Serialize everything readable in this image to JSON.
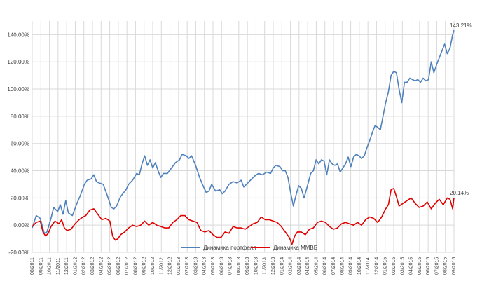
{
  "chart_data": {
    "type": "line",
    "title": "",
    "xlabel": "",
    "ylabel": "",
    "ylim": [
      -0.2,
      1.5
    ],
    "grid": true,
    "legend_position": "bottom-center",
    "y_ticks": [
      "-20.00%",
      "0.00%",
      "20.00%",
      "40.00%",
      "60.00%",
      "80.00%",
      "100.00%",
      "120.00%",
      "140.00%"
    ],
    "y_tick_values": [
      -0.2,
      0.0,
      0.2,
      0.4,
      0.6,
      0.8,
      1.0,
      1.2,
      1.4
    ],
    "x_labels": [
      "08/2011",
      "09/2011",
      "10/2011",
      "11/2011",
      "12/2011",
      "01/2012",
      "02/2012",
      "03/2012",
      "04/2012",
      "05/2012",
      "06/2012",
      "07/2012",
      "08/2012",
      "09/2012",
      "10/2012",
      "11/2012",
      "12/2012",
      "01/2013",
      "02/2013",
      "03/2013",
      "04/2013",
      "05/2013",
      "06/2013",
      "07/2013",
      "08/2013",
      "09/2013",
      "10/2013",
      "11/2013",
      "12/2013",
      "01/2014",
      "02/2014",
      "03/2014",
      "04/2014",
      "05/2014",
      "06/2014",
      "07/2014",
      "08/2014",
      "09/2014",
      "10/2014",
      "11/2014",
      "12/2014",
      "01/2015",
      "02/2015",
      "03/2015",
      "04/2015",
      "05/2015",
      "06/2015",
      "07/2015",
      "08/2015",
      "09/2015"
    ],
    "series": [
      {
        "name": "Динамика портфеля",
        "color": "#4f81bd",
        "end_label": "143.21%",
        "points": [
          [
            0,
            -0.02
          ],
          [
            0.3,
            0.07
          ],
          [
            0.6,
            0.05
          ],
          [
            0.9,
            -0.06
          ],
          [
            1.1,
            -0.05
          ],
          [
            1.4,
            0.05
          ],
          [
            1.6,
            0.13
          ],
          [
            1.9,
            0.1
          ],
          [
            2.1,
            0.15
          ],
          [
            2.3,
            0.08
          ],
          [
            2.5,
            0.18
          ],
          [
            2.7,
            0.09
          ],
          [
            3.0,
            0.07
          ],
          [
            3.3,
            0.15
          ],
          [
            3.6,
            0.22
          ],
          [
            3.9,
            0.3
          ],
          [
            4.1,
            0.33
          ],
          [
            4.4,
            0.34
          ],
          [
            4.6,
            0.37
          ],
          [
            4.8,
            0.32
          ],
          [
            5.0,
            0.31
          ],
          [
            5.3,
            0.3
          ],
          [
            5.6,
            0.22
          ],
          [
            5.9,
            0.13
          ],
          [
            6.1,
            0.12
          ],
          [
            6.3,
            0.14
          ],
          [
            6.6,
            0.21
          ],
          [
            7.0,
            0.26
          ],
          [
            7.2,
            0.3
          ],
          [
            7.5,
            0.33
          ],
          [
            7.8,
            0.38
          ],
          [
            8.0,
            0.37
          ],
          [
            8.2,
            0.45
          ],
          [
            8.4,
            0.51
          ],
          [
            8.6,
            0.44
          ],
          [
            8.8,
            0.48
          ],
          [
            9.0,
            0.42
          ],
          [
            9.2,
            0.46
          ],
          [
            9.4,
            0.4
          ],
          [
            9.6,
            0.35
          ],
          [
            9.8,
            0.38
          ],
          [
            10.1,
            0.38
          ],
          [
            10.4,
            0.42
          ],
          [
            10.7,
            0.46
          ],
          [
            11.0,
            0.48
          ],
          [
            11.2,
            0.52
          ],
          [
            11.5,
            0.51
          ],
          [
            11.7,
            0.49
          ],
          [
            11.9,
            0.51
          ],
          [
            12.2,
            0.44
          ],
          [
            12.5,
            0.35
          ],
          [
            12.8,
            0.28
          ],
          [
            13.0,
            0.24
          ],
          [
            13.2,
            0.25
          ],
          [
            13.4,
            0.3
          ],
          [
            13.7,
            0.25
          ],
          [
            14.0,
            0.26
          ],
          [
            14.2,
            0.23
          ],
          [
            14.4,
            0.25
          ],
          [
            14.7,
            0.3
          ],
          [
            15.0,
            0.32
          ],
          [
            15.3,
            0.31
          ],
          [
            15.6,
            0.33
          ],
          [
            15.8,
            0.28
          ],
          [
            16.0,
            0.3
          ],
          [
            16.3,
            0.33
          ],
          [
            16.6,
            0.36
          ],
          [
            16.9,
            0.38
          ],
          [
            17.2,
            0.37
          ],
          [
            17.5,
            0.39
          ],
          [
            17.8,
            0.38
          ],
          [
            18.0,
            0.42
          ],
          [
            18.2,
            0.44
          ],
          [
            18.5,
            0.43
          ],
          [
            18.7,
            0.4
          ],
          [
            18.9,
            0.4
          ],
          [
            19.1,
            0.35
          ],
          [
            19.3,
            0.24
          ],
          [
            19.5,
            0.14
          ],
          [
            19.7,
            0.22
          ],
          [
            19.9,
            0.29
          ],
          [
            20.1,
            0.27
          ],
          [
            20.3,
            0.2
          ],
          [
            20.5,
            0.27
          ],
          [
            20.8,
            0.38
          ],
          [
            21.0,
            0.4
          ],
          [
            21.2,
            0.48
          ],
          [
            21.4,
            0.45
          ],
          [
            21.6,
            0.48
          ],
          [
            21.8,
            0.47
          ],
          [
            22.0,
            0.37
          ],
          [
            22.2,
            0.48
          ],
          [
            22.4,
            0.45
          ],
          [
            22.6,
            0.44
          ],
          [
            22.8,
            0.45
          ],
          [
            23.0,
            0.39
          ],
          [
            23.2,
            0.42
          ],
          [
            23.4,
            0.45
          ],
          [
            23.6,
            0.5
          ],
          [
            23.8,
            0.43
          ],
          [
            24.0,
            0.5
          ],
          [
            24.2,
            0.52
          ],
          [
            24.4,
            0.51
          ],
          [
            24.6,
            0.49
          ],
          [
            24.8,
            0.51
          ],
          [
            25.0,
            0.57
          ],
          [
            25.2,
            0.62
          ],
          [
            25.4,
            0.68
          ],
          [
            25.6,
            0.73
          ],
          [
            25.8,
            0.72
          ],
          [
            26.0,
            0.7
          ],
          [
            26.2,
            0.8
          ],
          [
            26.4,
            0.9
          ],
          [
            26.6,
            0.98
          ],
          [
            26.8,
            1.1
          ],
          [
            27.0,
            1.13
          ],
          [
            27.2,
            1.12
          ],
          [
            27.4,
            1.0
          ],
          [
            27.6,
            0.9
          ],
          [
            27.8,
            1.05
          ],
          [
            28.0,
            1.05
          ],
          [
            28.2,
            1.08
          ],
          [
            28.4,
            1.07
          ],
          [
            28.6,
            1.06
          ],
          [
            28.8,
            1.07
          ],
          [
            29.0,
            1.05
          ],
          [
            29.2,
            1.08
          ],
          [
            29.4,
            1.06
          ],
          [
            29.6,
            1.07
          ],
          [
            29.8,
            1.2
          ],
          [
            30.0,
            1.12
          ],
          [
            30.2,
            1.18
          ],
          [
            30.4,
            1.23
          ],
          [
            30.6,
            1.28
          ],
          [
            30.8,
            1.33
          ],
          [
            31.0,
            1.26
          ],
          [
            31.2,
            1.3
          ],
          [
            31.4,
            1.4
          ],
          [
            31.5,
            1.4321
          ]
        ]
      },
      {
        "name": "Динамика ММВБ",
        "color": "#e00000",
        "end_label": "20.14%",
        "points": [
          [
            0,
            -0.01
          ],
          [
            0.3,
            0.02
          ],
          [
            0.6,
            0.03
          ],
          [
            0.8,
            -0.05
          ],
          [
            1.0,
            -0.08
          ],
          [
            1.2,
            -0.06
          ],
          [
            1.4,
            -0.01
          ],
          [
            1.7,
            0.03
          ],
          [
            2.0,
            0.01
          ],
          [
            2.2,
            0.04
          ],
          [
            2.4,
            -0.02
          ],
          [
            2.6,
            -0.04
          ],
          [
            2.9,
            -0.03
          ],
          [
            3.2,
            0.01
          ],
          [
            3.5,
            0.04
          ],
          [
            3.8,
            0.06
          ],
          [
            4.0,
            0.07
          ],
          [
            4.3,
            0.11
          ],
          [
            4.6,
            0.12
          ],
          [
            4.9,
            0.08
          ],
          [
            5.2,
            0.04
          ],
          [
            5.5,
            0.05
          ],
          [
            5.8,
            0.03
          ],
          [
            6.0,
            -0.08
          ],
          [
            6.2,
            -0.11
          ],
          [
            6.4,
            -0.1
          ],
          [
            6.6,
            -0.07
          ],
          [
            6.9,
            -0.05
          ],
          [
            7.2,
            -0.02
          ],
          [
            7.5,
            0.0
          ],
          [
            7.8,
            -0.01
          ],
          [
            8.1,
            0.0
          ],
          [
            8.4,
            0.03
          ],
          [
            8.7,
            0.0
          ],
          [
            9.0,
            0.02
          ],
          [
            9.3,
            0.0
          ],
          [
            9.6,
            -0.01
          ],
          [
            9.9,
            -0.02
          ],
          [
            10.2,
            -0.02
          ],
          [
            10.5,
            0.02
          ],
          [
            10.8,
            0.04
          ],
          [
            11.1,
            0.07
          ],
          [
            11.4,
            0.07
          ],
          [
            11.7,
            0.04
          ],
          [
            12.0,
            0.03
          ],
          [
            12.3,
            0.02
          ],
          [
            12.6,
            -0.04
          ],
          [
            12.9,
            -0.05
          ],
          [
            13.2,
            -0.04
          ],
          [
            13.5,
            -0.07
          ],
          [
            13.8,
            -0.09
          ],
          [
            14.1,
            -0.09
          ],
          [
            14.4,
            -0.05
          ],
          [
            14.7,
            -0.06
          ],
          [
            15.0,
            -0.01
          ],
          [
            15.3,
            -0.02
          ],
          [
            15.6,
            -0.02
          ],
          [
            15.9,
            -0.03
          ],
          [
            16.2,
            -0.01
          ],
          [
            16.5,
            0.01
          ],
          [
            16.8,
            0.02
          ],
          [
            17.1,
            0.06
          ],
          [
            17.4,
            0.04
          ],
          [
            17.7,
            0.04
          ],
          [
            18.0,
            0.03
          ],
          [
            18.3,
            0.02
          ],
          [
            18.6,
            -0.01
          ],
          [
            18.9,
            -0.05
          ],
          [
            19.2,
            -0.09
          ],
          [
            19.4,
            -0.14
          ],
          [
            19.6,
            -0.08
          ],
          [
            19.8,
            -0.05
          ],
          [
            20.1,
            -0.05
          ],
          [
            20.4,
            -0.07
          ],
          [
            20.7,
            -0.03
          ],
          [
            21.0,
            -0.02
          ],
          [
            21.3,
            0.02
          ],
          [
            21.6,
            0.03
          ],
          [
            21.9,
            0.02
          ],
          [
            22.2,
            -0.01
          ],
          [
            22.5,
            -0.03
          ],
          [
            22.8,
            -0.02
          ],
          [
            23.1,
            0.01
          ],
          [
            23.4,
            0.02
          ],
          [
            23.7,
            0.01
          ],
          [
            24.0,
            0.0
          ],
          [
            24.3,
            0.02
          ],
          [
            24.6,
            0.0
          ],
          [
            24.9,
            0.04
          ],
          [
            25.2,
            0.06
          ],
          [
            25.5,
            0.05
          ],
          [
            25.8,
            0.02
          ],
          [
            26.1,
            0.06
          ],
          [
            26.4,
            0.12
          ],
          [
            26.6,
            0.15
          ],
          [
            26.8,
            0.26
          ],
          [
            27.0,
            0.27
          ],
          [
            27.2,
            0.21
          ],
          [
            27.4,
            0.14
          ],
          [
            27.7,
            0.16
          ],
          [
            28.0,
            0.18
          ],
          [
            28.3,
            0.2
          ],
          [
            28.6,
            0.16
          ],
          [
            28.9,
            0.13
          ],
          [
            29.2,
            0.14
          ],
          [
            29.5,
            0.17
          ],
          [
            29.8,
            0.12
          ],
          [
            30.1,
            0.16
          ],
          [
            30.4,
            0.19
          ],
          [
            30.7,
            0.15
          ],
          [
            31.0,
            0.2
          ],
          [
            31.2,
            0.19
          ],
          [
            31.4,
            0.12
          ],
          [
            31.5,
            0.2014
          ]
        ]
      }
    ]
  }
}
